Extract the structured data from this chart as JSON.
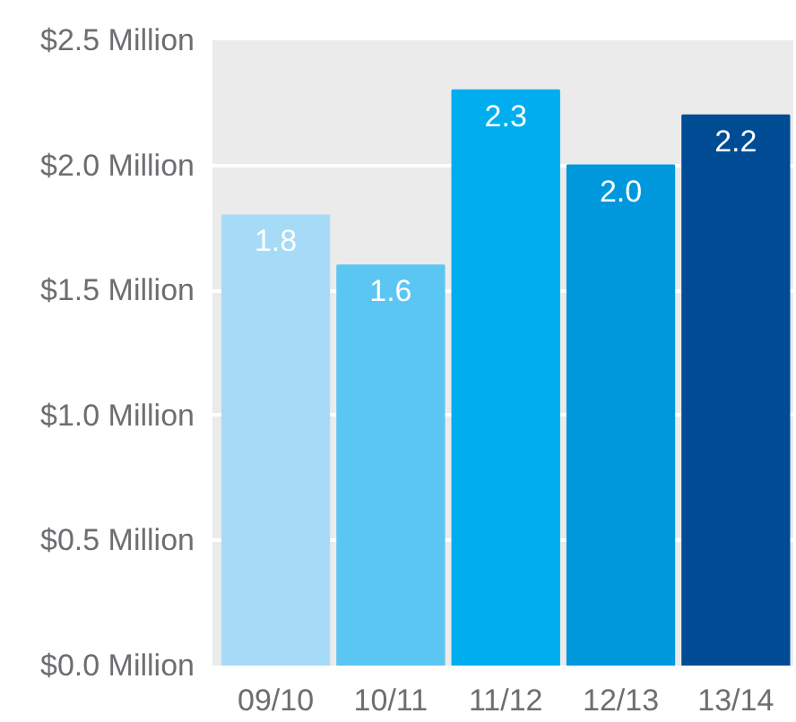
{
  "chart_data": {
    "type": "bar",
    "categories": [
      "09/10",
      "10/11",
      "11/12",
      "12/13",
      "13/14"
    ],
    "values": [
      1.8,
      1.6,
      2.3,
      2.0,
      2.2
    ],
    "colors": [
      "#a6dbf7",
      "#5bc6f2",
      "#00aeef",
      "#0098dc",
      "#004c94"
    ],
    "ylim": [
      0,
      2.5
    ],
    "yticks": [
      {
        "value": 0,
        "label": "$0.0 Million"
      },
      {
        "value": 0.5,
        "label": "$0.5 Million"
      },
      {
        "value": 1.0,
        "label": "$1.0 Million"
      },
      {
        "value": 1.5,
        "label": "$1.5 Million"
      },
      {
        "value": 2.0,
        "label": "$2.0 Million"
      },
      {
        "value": 2.5,
        "label": "$2.5 Million"
      }
    ],
    "grid": "y",
    "value_labels": [
      "1.8",
      "1.6",
      "2.3",
      "2.0",
      "2.2"
    ]
  }
}
